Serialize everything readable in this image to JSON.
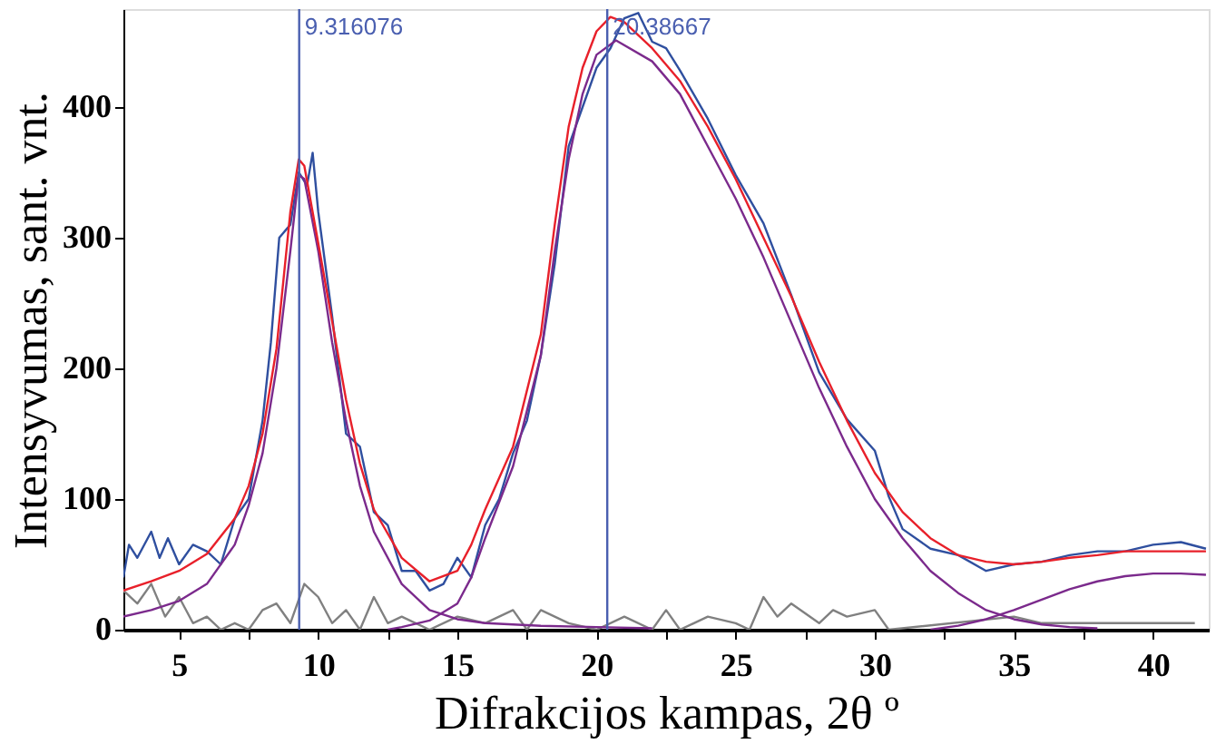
{
  "chart_data": {
    "type": "line",
    "xlabel": "Difrakcijos kampas, 2θ º",
    "ylabel": "Intensyvumas, sant. vnt.",
    "xlim": [
      3,
      42
    ],
    "ylim": [
      0,
      475
    ],
    "xticks": [
      5,
      {
        "value": 7.5,
        "label": null
      },
      10,
      {
        "value": 12.5,
        "label": null
      },
      15,
      {
        "value": 17.5,
        "label": null
      },
      20,
      {
        "value": 22.5,
        "label": null
      },
      25,
      {
        "value": 27.5,
        "label": null
      },
      30,
      {
        "value": 32.5,
        "label": null
      },
      35,
      {
        "value": 37.5,
        "label": null
      },
      40
    ],
    "yticks": [
      0,
      100,
      200,
      300,
      400
    ],
    "grid": false,
    "line_style": "solid",
    "series": [
      {
        "color": "#808080",
        "x": [
          3,
          3.5,
          4,
          4.5,
          5,
          5.5,
          6,
          6.5,
          7,
          7.5,
          8,
          8.5,
          9,
          9.5,
          10,
          10.5,
          11,
          11.5,
          12,
          12.5,
          13,
          14,
          15,
          16,
          17,
          17.5,
          18,
          19,
          20,
          21,
          22,
          22.5,
          23,
          24,
          25,
          25.5,
          26,
          26.5,
          27,
          28,
          28.5,
          29,
          30,
          30.5,
          35,
          36,
          41.5
        ],
        "values": [
          30,
          20,
          35,
          10,
          25,
          5,
          10,
          0,
          5,
          0,
          15,
          20,
          5,
          35,
          25,
          5,
          15,
          0,
          25,
          5,
          10,
          0,
          10,
          5,
          15,
          0,
          15,
          5,
          0,
          10,
          0,
          15,
          0,
          10,
          5,
          0,
          25,
          10,
          20,
          5,
          15,
          10,
          15,
          0,
          10,
          5,
          5
        ]
      },
      {
        "color": "#2f4f9f",
        "x": [
          3,
          3.2,
          3.5,
          4,
          4.3,
          4.6,
          5,
          5.5,
          6,
          6.5,
          7,
          7.5,
          8,
          8.3,
          8.6,
          9,
          9.3,
          9.6,
          9.8,
          10,
          10.5,
          11,
          11.5,
          12,
          12.5,
          13,
          13.5,
          14,
          14.5,
          15,
          15.5,
          16,
          16.5,
          17,
          17.5,
          18,
          18.5,
          19,
          19.5,
          20,
          20.5,
          21,
          21.5,
          22,
          22.5,
          23,
          24,
          25,
          26,
          27,
          28,
          29,
          30,
          30.5,
          31,
          32,
          33,
          34,
          35,
          36,
          37,
          38,
          39,
          40,
          41,
          41.9
        ],
        "values": [
          40,
          65,
          55,
          75,
          55,
          70,
          50,
          65,
          60,
          50,
          85,
          100,
          160,
          220,
          300,
          310,
          350,
          340,
          365,
          320,
          240,
          150,
          140,
          90,
          80,
          45,
          45,
          30,
          35,
          55,
          40,
          80,
          100,
          135,
          160,
          210,
          280,
          370,
          400,
          430,
          445,
          468,
          472,
          450,
          445,
          428,
          391,
          348,
          311,
          256,
          197,
          161,
          137,
          102,
          77,
          62,
          57,
          45,
          50,
          52,
          57,
          60,
          60,
          65,
          67,
          62
        ]
      },
      {
        "color": "#7b2a8c",
        "x": [
          3,
          4,
          5,
          6,
          7,
          7.5,
          8,
          8.5,
          9,
          9.3,
          9.5,
          10,
          10.5,
          11,
          11.5,
          12,
          13,
          14,
          15,
          16,
          18,
          20,
          22
        ],
        "values": [
          10,
          15,
          22,
          35,
          65,
          95,
          135,
          200,
          290,
          348,
          345,
          290,
          220,
          160,
          110,
          75,
          35,
          15,
          8,
          5,
          3,
          2,
          1
        ]
      },
      {
        "color": "#7b2a8c",
        "x": [
          12.5,
          13,
          14,
          15,
          15.5,
          16,
          17,
          18,
          18.5,
          19,
          19.5,
          20,
          20.7,
          22,
          23,
          24,
          25,
          26,
          27,
          28,
          29,
          30,
          31,
          32,
          33,
          34,
          35,
          36,
          37,
          38
        ],
        "values": [
          0,
          2,
          7,
          20,
          40,
          70,
          125,
          210,
          290,
          360,
          410,
          440,
          451,
          435,
          410,
          370,
          330,
          285,
          235,
          185,
          140,
          100,
          70,
          45,
          28,
          15,
          8,
          4,
          2,
          1
        ]
      },
      {
        "color": "#7b2a8c",
        "x": [
          32,
          33,
          34,
          35,
          36,
          37,
          38,
          39,
          40,
          41,
          41.9
        ],
        "values": [
          0,
          3,
          8,
          15,
          23,
          31,
          37,
          41,
          43,
          43,
          42
        ]
      },
      {
        "color": "#e8202a",
        "x": [
          3,
          4,
          5,
          6,
          7,
          7.5,
          8,
          8.5,
          9,
          9.3,
          9.5,
          10,
          10.5,
          11,
          11.5,
          12,
          13,
          14,
          15,
          15.5,
          16,
          17,
          18,
          18.5,
          19,
          19.5,
          20,
          20.5,
          21,
          22,
          23,
          24,
          25,
          26,
          27,
          28,
          29,
          30,
          31,
          32,
          33,
          34,
          35,
          36,
          37,
          38,
          39,
          40,
          41,
          41.9
        ],
        "values": [
          30,
          37,
          45,
          58,
          85,
          110,
          150,
          215,
          320,
          360,
          355,
          296,
          236,
          176,
          127,
          92,
          55,
          37,
          45,
          65,
          92,
          140,
          226,
          310,
          385,
          430,
          458,
          469,
          465,
          445,
          420,
          385,
          345,
          300,
          255,
          205,
          160,
          120,
          90,
          70,
          57,
          52,
          50,
          52,
          55,
          57,
          60,
          60,
          60,
          60
        ]
      }
    ],
    "ref_lines": [
      {
        "axis": "x",
        "value": 9.316076,
        "label": "9.316076",
        "color": "#4a5fb0"
      },
      {
        "axis": "x",
        "value": 20.38667,
        "label": "20.38667",
        "color": "#4a5fb0"
      }
    ]
  }
}
